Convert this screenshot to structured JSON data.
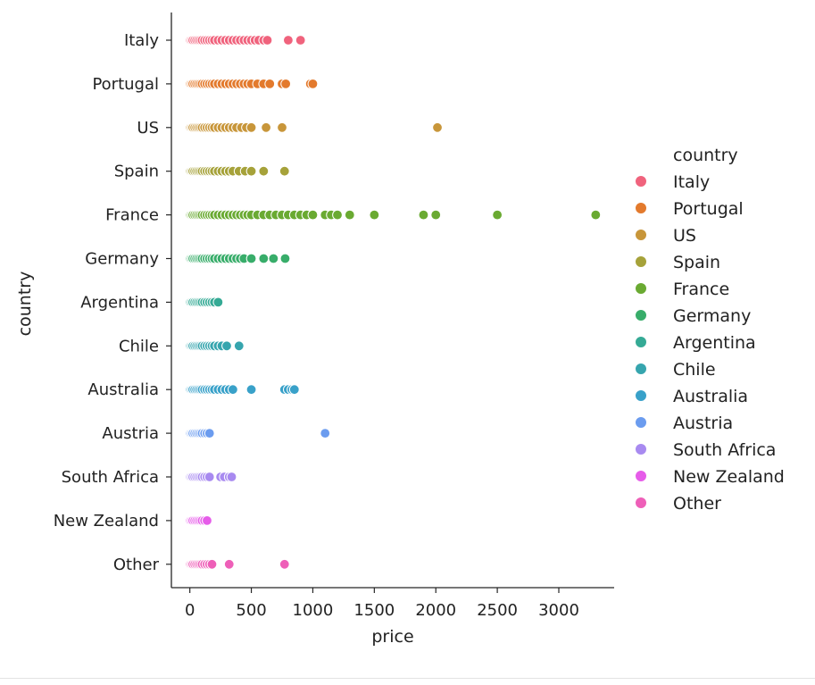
{
  "chart_data": {
    "type": "scatter",
    "title": "",
    "xlabel": "price",
    "ylabel": "country",
    "xlim": [
      -150,
      3450
    ],
    "xticks": [
      0,
      500,
      1000,
      1500,
      2000,
      2500,
      3000
    ],
    "grid": false,
    "legend": {
      "title": "country",
      "placement": "right"
    },
    "categories": [
      "Italy",
      "Portugal",
      "US",
      "Spain",
      "France",
      "Germany",
      "Argentina",
      "Chile",
      "Australia",
      "Austria",
      "South Africa",
      "New Zealand",
      "Other"
    ],
    "series": [
      {
        "name": "Italy",
        "color": "#f0637d",
        "x": [
          5,
          15,
          25,
          40,
          55,
          70,
          85,
          100,
          120,
          140,
          160,
          180,
          200,
          230,
          260,
          290,
          320,
          350,
          380,
          410,
          440,
          470,
          500,
          530,
          560,
          600,
          630,
          800,
          900
        ]
      },
      {
        "name": "Portugal",
        "color": "#e37a2d",
        "x": [
          5,
          15,
          25,
          40,
          55,
          70,
          85,
          100,
          120,
          140,
          160,
          180,
          200,
          230,
          260,
          290,
          320,
          350,
          380,
          410,
          440,
          470,
          500,
          550,
          600,
          650,
          750,
          780,
          980,
          1000
        ]
      },
      {
        "name": "US",
        "color": "#c8963a",
        "x": [
          5,
          15,
          25,
          40,
          55,
          70,
          85,
          100,
          120,
          140,
          160,
          180,
          200,
          230,
          260,
          290,
          320,
          350,
          380,
          420,
          460,
          500,
          620,
          750,
          2013
        ]
      },
      {
        "name": "Spain",
        "color": "#a6a23a",
        "x": [
          5,
          15,
          25,
          40,
          55,
          70,
          85,
          100,
          120,
          140,
          160,
          180,
          200,
          230,
          260,
          290,
          320,
          350,
          400,
          450,
          500,
          600,
          770
        ]
      },
      {
        "name": "France",
        "color": "#6aaa32",
        "x": [
          5,
          15,
          25,
          40,
          55,
          70,
          85,
          100,
          120,
          140,
          160,
          180,
          200,
          230,
          260,
          290,
          320,
          350,
          380,
          410,
          440,
          470,
          500,
          550,
          600,
          650,
          700,
          750,
          800,
          850,
          900,
          950,
          1000,
          1100,
          1150,
          1200,
          1300,
          1500,
          1900,
          2000,
          2500,
          3300
        ]
      },
      {
        "name": "Germany",
        "color": "#38ad6a",
        "x": [
          5,
          15,
          25,
          40,
          55,
          70,
          85,
          100,
          120,
          140,
          160,
          180,
          200,
          230,
          260,
          290,
          320,
          350,
          380,
          410,
          440,
          500,
          600,
          680,
          775
        ]
      },
      {
        "name": "Argentina",
        "color": "#35aa95",
        "x": [
          5,
          15,
          25,
          40,
          55,
          70,
          85,
          100,
          120,
          140,
          160,
          180,
          200,
          230
        ]
      },
      {
        "name": "Chile",
        "color": "#36a5ae",
        "x": [
          5,
          15,
          25,
          40,
          55,
          70,
          85,
          100,
          120,
          140,
          160,
          180,
          200,
          230,
          260,
          300,
          400
        ]
      },
      {
        "name": "Australia",
        "color": "#39a1c9",
        "x": [
          5,
          15,
          25,
          40,
          55,
          70,
          85,
          100,
          120,
          140,
          160,
          180,
          200,
          230,
          260,
          290,
          320,
          350,
          500,
          770,
          800,
          830,
          850
        ]
      },
      {
        "name": "Austria",
        "color": "#6b9cef",
        "x": [
          5,
          15,
          25,
          40,
          55,
          70,
          85,
          100,
          120,
          140,
          160,
          1100
        ]
      },
      {
        "name": "South Africa",
        "color": "#a88af0",
        "x": [
          5,
          15,
          25,
          40,
          55,
          70,
          85,
          100,
          120,
          140,
          160,
          250,
          280,
          320,
          340
        ]
      },
      {
        "name": "New Zealand",
        "color": "#e65ce9",
        "x": [
          5,
          15,
          25,
          40,
          55,
          70,
          85,
          100,
          120,
          140
        ]
      },
      {
        "name": "Other",
        "color": "#ee5fb8",
        "x": [
          5,
          15,
          25,
          40,
          55,
          70,
          85,
          100,
          120,
          140,
          160,
          180,
          320,
          770
        ]
      }
    ]
  }
}
